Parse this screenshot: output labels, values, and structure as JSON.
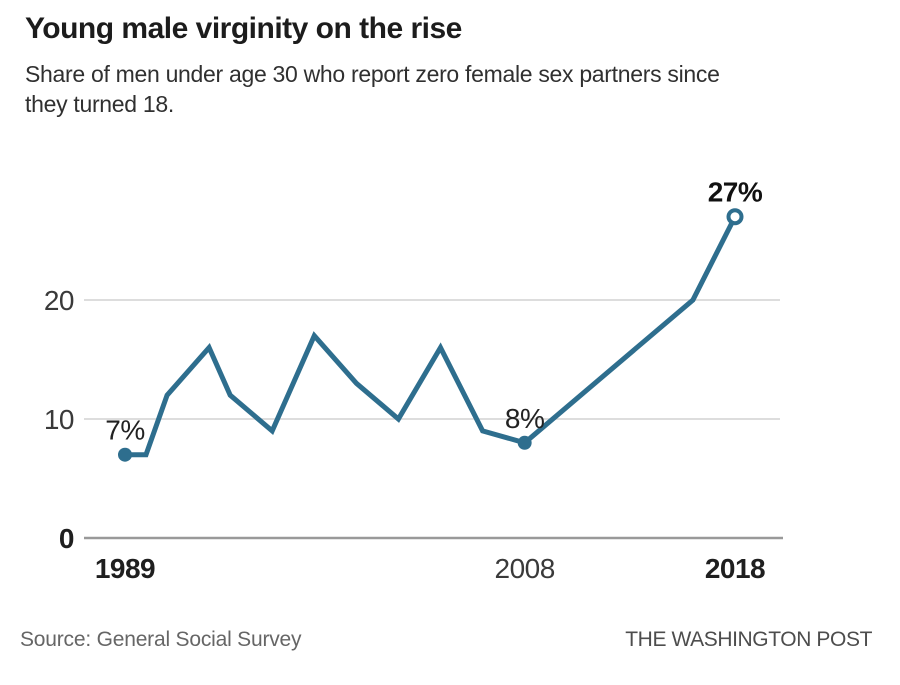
{
  "header": {
    "title": "Young male virginity on the rise",
    "subtitle_lines": [
      "Share of men under age 30 who report zero female sex partners since",
      "they turned 18."
    ]
  },
  "footer": {
    "source": "Source: General Social Survey",
    "brand": "THE WASHINGTON POST"
  },
  "chart_data": {
    "type": "line",
    "title": "Young male virginity on the rise",
    "subtitle": "Share of men under age 30 who report zero female sex partners since they turned 18.",
    "xlabel": "",
    "ylabel": "",
    "xlim": [
      1989,
      2018
    ],
    "ylim": [
      0,
      30
    ],
    "grid": true,
    "legend": "none",
    "line_color": "#2e6e8e",
    "grid_color": "#d2d2d2",
    "axis_color": "#999999",
    "series": [
      {
        "name": "Share of men under 30 reporting zero female sex partners since age 18 (%)",
        "points": [
          {
            "year": 1989,
            "value": 7
          },
          {
            "year": 1990,
            "value": 7
          },
          {
            "year": 1991,
            "value": 12
          },
          {
            "year": 1993,
            "value": 16
          },
          {
            "year": 1994,
            "value": 12
          },
          {
            "year": 1996,
            "value": 9
          },
          {
            "year": 1998,
            "value": 17
          },
          {
            "year": 2000,
            "value": 13
          },
          {
            "year": 2002,
            "value": 10
          },
          {
            "year": 2004,
            "value": 16
          },
          {
            "year": 2006,
            "value": 9
          },
          {
            "year": 2008,
            "value": 8
          },
          {
            "year": 2016,
            "value": 20
          },
          {
            "year": 2018,
            "value": 27
          }
        ]
      }
    ],
    "y_ticks": [
      {
        "value": 0,
        "label": "0",
        "bold": true
      },
      {
        "value": 10,
        "label": "10",
        "bold": false
      },
      {
        "value": 20,
        "label": "20",
        "bold": false
      }
    ],
    "x_ticks": [
      {
        "year": 1989,
        "label": "1989",
        "bold": true
      },
      {
        "year": 2008,
        "label": "2008",
        "bold": false
      },
      {
        "year": 2018,
        "label": "2018",
        "bold": true
      }
    ],
    "annotations": [
      {
        "year": 1989,
        "value": 7,
        "text": "7%",
        "bold": false,
        "marker": "filled"
      },
      {
        "year": 2008,
        "value": 8,
        "text": "8%",
        "bold": false,
        "marker": "filled"
      },
      {
        "year": 2018,
        "value": 27,
        "text": "27%",
        "bold": true,
        "marker": "open"
      }
    ]
  }
}
